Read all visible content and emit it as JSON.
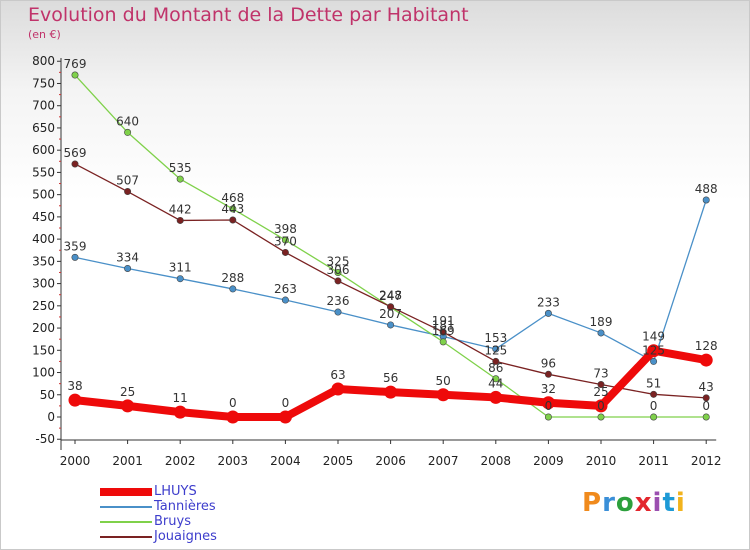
{
  "header": {
    "title": "Evolution du Montant de la Dette par Habitant",
    "unit": "(en €)"
  },
  "logo": {
    "text": "Proxiti",
    "colors": [
      "#f08a1c",
      "#3a8fd8",
      "#2ca03c",
      "#e3262d",
      "#9b4fb0",
      "#1d9ad6",
      "#f2b31c"
    ]
  },
  "chart_data": {
    "type": "line",
    "title": "Evolution du Montant de la Dette par Habitant",
    "xlabel": "",
    "ylabel": "(en €)",
    "x": [
      "2000",
      "2001",
      "2002",
      "2003",
      "2004",
      "2005",
      "2006",
      "2007",
      "2008",
      "2009",
      "2010",
      "2011",
      "2012"
    ],
    "ylim": [
      -50,
      800
    ],
    "yticks": [
      -50,
      0,
      50,
      100,
      150,
      200,
      250,
      300,
      350,
      400,
      450,
      500,
      550,
      600,
      650,
      700,
      750,
      800
    ],
    "grid": false,
    "legend": "bottom-left",
    "series": [
      {
        "name": "Tannières",
        "color": "#4a90c8",
        "width": 1.3,
        "values": [
          359,
          334,
          311,
          288,
          263,
          236,
          207,
          181,
          153,
          233,
          189,
          125,
          488
        ],
        "labels": [
          "359",
          "334",
          "311",
          "288",
          "263",
          "236",
          "207",
          "181",
          "153",
          "233",
          "189",
          "125",
          "488"
        ]
      },
      {
        "name": "Bruys",
        "color": "#7fd14a",
        "width": 1.3,
        "values": [
          769,
          640,
          535,
          468,
          398,
          325,
          247,
          169,
          86,
          0,
          0,
          0,
          0
        ],
        "labels": [
          "769",
          "640",
          "535",
          "468",
          "398",
          "325",
          "247",
          "169",
          "86",
          "0",
          "0",
          "0",
          "0"
        ]
      },
      {
        "name": "Jouaignes",
        "color": "#7a2222",
        "width": 1.3,
        "values": [
          569,
          507,
          442,
          443,
          370,
          306,
          248,
          191,
          125,
          96,
          73,
          51,
          43
        ],
        "labels": [
          "569",
          "507",
          "442",
          "443",
          "370",
          "306",
          "248",
          "191",
          "125",
          "96",
          "73",
          "51",
          "43"
        ]
      },
      {
        "name": "LHUYS",
        "color": "#ee0a0a",
        "width": 8,
        "values": [
          38,
          25,
          11,
          0,
          0,
          63,
          56,
          50,
          44,
          32,
          25,
          149,
          128
        ],
        "labels": [
          "38",
          "25",
          "11",
          "0",
          "0",
          "63",
          "56",
          "50",
          "44",
          "32",
          "25",
          "149",
          "128"
        ]
      }
    ],
    "legend_order": [
      "LHUYS",
      "Tannières",
      "Bruys",
      "Jouaignes"
    ]
  }
}
